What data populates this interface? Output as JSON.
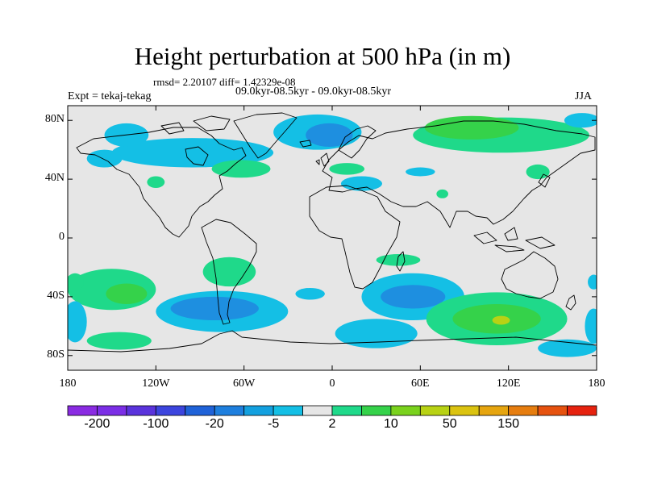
{
  "header": {
    "title": "Height perturbation at 500 hPa (in m)",
    "stats": "rmsd= 2.20107 diff= 1.42329e-08",
    "experiment": "Expt = tekaj-tekag",
    "period": "09.0kyr-08.5kyr - 09.0kyr-08.5kyr",
    "season": "JJA"
  },
  "axes": {
    "lat_ticks": [
      {
        "value": 80,
        "label": "80N"
      },
      {
        "value": 40,
        "label": "40N"
      },
      {
        "value": 0,
        "label": "0"
      },
      {
        "value": -40,
        "label": "40S"
      },
      {
        "value": -80,
        "label": "80S"
      }
    ],
    "lon_ticks": [
      {
        "value": -180,
        "label": "180"
      },
      {
        "value": -120,
        "label": "120W"
      },
      {
        "value": -60,
        "label": "60W"
      },
      {
        "value": 0,
        "label": "0"
      },
      {
        "value": 60,
        "label": "60E"
      },
      {
        "value": 120,
        "label": "120E"
      },
      {
        "value": 180,
        "label": "180"
      }
    ]
  },
  "colorbar": {
    "colors": [
      "#8a2be2",
      "#7b2ee6",
      "#5a33dc",
      "#3c45de",
      "#1f62d8",
      "#1e7fde",
      "#13a0df",
      "#14bfe5",
      "#e6e6e6",
      "#1fd98a",
      "#35d24a",
      "#7ad21d",
      "#b8d214",
      "#dbc310",
      "#e6a50f",
      "#e67d0f",
      "#e6520f",
      "#e6220f"
    ],
    "labels": [
      {
        "boundary": 1,
        "text": "-200"
      },
      {
        "boundary": 3,
        "text": "-100"
      },
      {
        "boundary": 5,
        "text": "-20"
      },
      {
        "boundary": 7,
        "text": "-5"
      },
      {
        "boundary": 9,
        "text": "2"
      },
      {
        "boundary": 11,
        "text": "10"
      },
      {
        "boundary": 13,
        "text": "50"
      },
      {
        "boundary": 15,
        "text": "150"
      }
    ]
  },
  "field": {
    "negative_1_color": "#14bfe5",
    "negative_2_color": "#1e8fe0",
    "positive_1_color": "#1fd98a",
    "positive_2_color": "#35d24a",
    "positive_3_color": "#b8d214",
    "anomalies": [
      {
        "lon": -150,
        "lat": -35,
        "rlon": 30,
        "rlat": 14,
        "level": 1
      },
      {
        "lon": -140,
        "lat": -38,
        "rlon": 14,
        "rlat": 7,
        "level": 2
      },
      {
        "lon": -175,
        "lat": -30,
        "rlon": 6,
        "rlat": 6,
        "level": 1
      },
      {
        "lon": -175,
        "lat": -57,
        "rlon": 8,
        "rlat": 14,
        "level": -1
      },
      {
        "lon": -145,
        "lat": -70,
        "rlon": 22,
        "rlat": 6,
        "level": 1
      },
      {
        "lon": -75,
        "lat": -50,
        "rlon": 45,
        "rlat": 14,
        "level": -1
      },
      {
        "lon": -80,
        "lat": -48,
        "rlon": 30,
        "rlat": 8,
        "level": -2
      },
      {
        "lon": -70,
        "lat": -23,
        "rlon": 18,
        "rlat": 10,
        "level": 1
      },
      {
        "lon": -15,
        "lat": -38,
        "rlon": 10,
        "rlat": 4,
        "level": -1
      },
      {
        "lon": 55,
        "lat": -40,
        "rlon": 35,
        "rlat": 16,
        "level": -1
      },
      {
        "lon": 55,
        "lat": -40,
        "rlon": 22,
        "rlat": 8,
        "level": -2
      },
      {
        "lon": 30,
        "lat": -65,
        "rlon": 28,
        "rlat": 10,
        "level": -1
      },
      {
        "lon": 45,
        "lat": -15,
        "rlon": 15,
        "rlat": 4,
        "level": 1
      },
      {
        "lon": 112,
        "lat": -55,
        "rlon": 48,
        "rlat": 18,
        "level": 1
      },
      {
        "lon": 112,
        "lat": -55,
        "rlon": 30,
        "rlat": 10,
        "level": 2
      },
      {
        "lon": 115,
        "lat": -56,
        "rlon": 6,
        "rlat": 3,
        "level": 3
      },
      {
        "lon": 160,
        "lat": -75,
        "rlon": 20,
        "rlat": 6,
        "level": -1
      },
      {
        "lon": 178,
        "lat": -60,
        "rlon": 6,
        "rlat": 12,
        "level": -1
      },
      {
        "lon": 178,
        "lat": -30,
        "rlon": 4,
        "rlat": 5,
        "level": -1
      },
      {
        "lon": -10,
        "lat": 72,
        "rlon": 30,
        "rlat": 12,
        "level": -1
      },
      {
        "lon": -2,
        "lat": 70,
        "rlon": 16,
        "rlat": 8,
        "level": -2
      },
      {
        "lon": -95,
        "lat": 58,
        "rlon": 55,
        "rlat": 10,
        "level": -1
      },
      {
        "lon": -140,
        "lat": 70,
        "rlon": 15,
        "rlat": 8,
        "level": -1
      },
      {
        "lon": -155,
        "lat": 54,
        "rlon": 12,
        "rlat": 6,
        "level": -1
      },
      {
        "lon": -62,
        "lat": 47,
        "rlon": 20,
        "rlat": 6,
        "level": 1
      },
      {
        "lon": -120,
        "lat": 38,
        "rlon": 6,
        "rlat": 4,
        "level": 1
      },
      {
        "lon": 115,
        "lat": 70,
        "rlon": 60,
        "rlat": 12,
        "level": 1
      },
      {
        "lon": 95,
        "lat": 75,
        "rlon": 32,
        "rlat": 8,
        "level": 2
      },
      {
        "lon": 10,
        "lat": 47,
        "rlon": 12,
        "rlat": 4,
        "level": 1
      },
      {
        "lon": 20,
        "lat": 37,
        "rlon": 14,
        "rlat": 5,
        "level": -1
      },
      {
        "lon": 60,
        "lat": 45,
        "rlon": 10,
        "rlat": 3,
        "level": -1
      },
      {
        "lon": 75,
        "lat": 30,
        "rlon": 4,
        "rlat": 3,
        "level": 1
      },
      {
        "lon": 170,
        "lat": 80,
        "rlon": 12,
        "rlat": 5,
        "level": -1
      },
      {
        "lon": 140,
        "lat": 45,
        "rlon": 8,
        "rlat": 5,
        "level": 1
      }
    ]
  }
}
